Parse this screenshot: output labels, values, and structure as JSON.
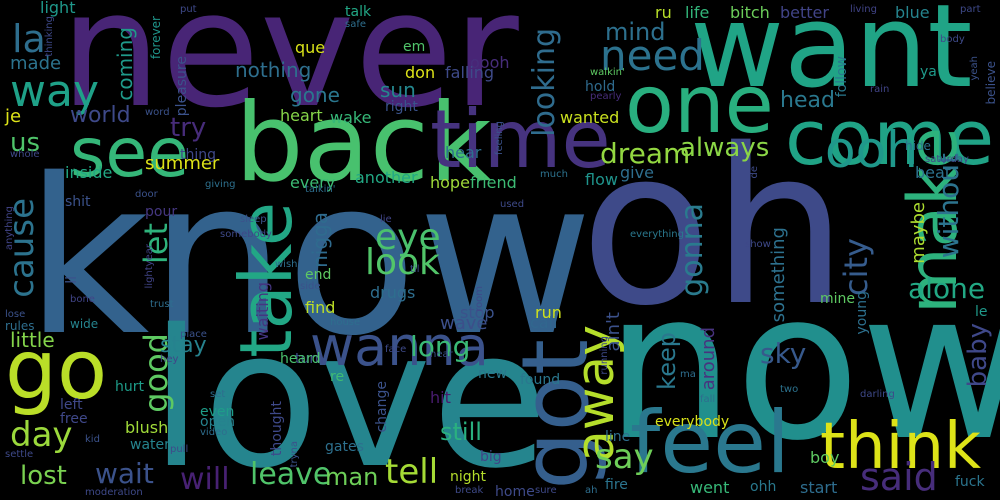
{
  "wordcloud": {
    "background": "#000000",
    "words": [
      {
        "text": "never",
        "color": "#482576"
      },
      {
        "text": "know",
        "color": "#33628d"
      },
      {
        "text": "oh",
        "color": "#3e4a89"
      },
      {
        "text": "now",
        "color": "#218f8d"
      },
      {
        "text": "love",
        "color": "#25858e"
      },
      {
        "text": "want",
        "color": "#20a486"
      },
      {
        "text": "back",
        "color": "#48c16e"
      },
      {
        "text": "time",
        "color": "#46337f"
      },
      {
        "text": "one",
        "color": "#29af7f"
      },
      {
        "text": "come",
        "color": "#20a386"
      },
      {
        "text": "feel",
        "color": "#2a788e"
      },
      {
        "text": "think",
        "color": "#dde318"
      },
      {
        "text": "got",
        "color": "#355f8d"
      },
      {
        "text": "go",
        "color": "#bade28"
      },
      {
        "text": "see",
        "color": "#35b779"
      },
      {
        "text": "take",
        "color": "#22a785"
      },
      {
        "text": "make",
        "color": "#2db27d"
      },
      {
        "text": "wanna",
        "color": "#3b528b"
      },
      {
        "text": "away",
        "color": "#b5de2b"
      },
      {
        "text": "need",
        "color": "#2c728e"
      },
      {
        "text": "ooh",
        "color": "#1f988b"
      },
      {
        "text": "say",
        "color": "#6ece58"
      },
      {
        "text": "said",
        "color": "#472d7b"
      },
      {
        "text": "tell",
        "color": "#a5db36"
      },
      {
        "text": "way",
        "color": "#1fa188"
      },
      {
        "text": "la",
        "color": "#2e6e8e"
      },
      {
        "text": "cause",
        "color": "#2c738e"
      },
      {
        "text": "day",
        "color": "#9bd93c"
      },
      {
        "text": "look",
        "color": "#52c569"
      },
      {
        "text": "eye",
        "color": "#4ac16d"
      },
      {
        "text": "let",
        "color": "#2eb37c"
      },
      {
        "text": "good",
        "color": "#5ec962"
      },
      {
        "text": "long",
        "color": "#3aba76"
      },
      {
        "text": "city",
        "color": "#365c8d"
      },
      {
        "text": "alone",
        "color": "#22a884"
      },
      {
        "text": "gonna",
        "color": "#2a7b8e"
      },
      {
        "text": "looking",
        "color": "#2f6c8e"
      },
      {
        "text": "dream",
        "color": "#93d741"
      },
      {
        "text": "always",
        "color": "#8bd646"
      },
      {
        "text": "without",
        "color": "#2c738e"
      },
      {
        "text": "try",
        "color": "#472c7a"
      },
      {
        "text": "wait",
        "color": "#3b528b"
      },
      {
        "text": "will",
        "color": "#482173"
      },
      {
        "text": "leave",
        "color": "#50c46a"
      },
      {
        "text": "lost",
        "color": "#7ad151"
      },
      {
        "text": "us",
        "color": "#4fc46a"
      },
      {
        "text": "keep",
        "color": "#2a788e"
      },
      {
        "text": "sky",
        "color": "#37598c"
      },
      {
        "text": "baby",
        "color": "#3f4889"
      },
      {
        "text": "man",
        "color": "#6ece58"
      },
      {
        "text": "still",
        "color": "#2ab07f"
      },
      {
        "text": "stay",
        "color": "#26828e"
      },
      {
        "text": "mind",
        "color": "#2d708e"
      },
      {
        "text": "head",
        "color": "#2a788e"
      },
      {
        "text": "world",
        "color": "#3e4989"
      },
      {
        "text": "coming",
        "color": "#1f9a8a"
      },
      {
        "text": "nigga",
        "color": "#2f6b8e"
      },
      {
        "text": "nothing",
        "color": "#2e6f8e"
      },
      {
        "text": "gone",
        "color": "#2a778e"
      },
      {
        "text": "sun",
        "color": "#24878e"
      },
      {
        "text": "little",
        "color": "#84d44b"
      },
      {
        "text": "wave",
        "color": "#3c4f8a"
      },
      {
        "text": "maybe",
        "color": "#addc30"
      },
      {
        "text": "something",
        "color": "#2d718e"
      },
      {
        "text": "ain't",
        "color": "#3b518b"
      },
      {
        "text": "around",
        "color": "#48337f"
      },
      {
        "text": "summer",
        "color": "#dde318"
      },
      {
        "text": "inside",
        "color": "#22a884"
      },
      {
        "text": "every",
        "color": "#3dbc74"
      },
      {
        "text": "another",
        "color": "#22a884"
      },
      {
        "text": "hope",
        "color": "#9fda3a"
      },
      {
        "text": "friend",
        "color": "#3dbc74"
      },
      {
        "text": "flow",
        "color": "#1f948c"
      },
      {
        "text": "give",
        "color": "#2e6e8e"
      },
      {
        "text": "beat",
        "color": "#2c728e"
      },
      {
        "text": "wanted",
        "color": "#cae11f"
      },
      {
        "text": "hear",
        "color": "#2e6f8e"
      },
      {
        "text": "waiting",
        "color": "#453581"
      },
      {
        "text": "drugs",
        "color": "#2e6e8e"
      },
      {
        "text": "find",
        "color": "#bddf26"
      },
      {
        "text": "run",
        "color": "#d0e11c"
      },
      {
        "text": "stop",
        "color": "#3b528b"
      },
      {
        "text": "call",
        "color": "#31678e"
      },
      {
        "text": "end",
        "color": "#5ec962"
      },
      {
        "text": "turn",
        "color": "#3e4c8a"
      },
      {
        "text": "re",
        "color": "#3fbc73"
      },
      {
        "text": "heard",
        "color": "#4ac16d"
      },
      {
        "text": "found",
        "color": "#2a778e"
      },
      {
        "text": "new",
        "color": "#2a788e"
      },
      {
        "text": "hurt",
        "color": "#1e9c89"
      },
      {
        "text": "pour",
        "color": "#453781"
      },
      {
        "text": "even",
        "color": "#1e9d89"
      },
      {
        "text": "open",
        "color": "#26828e"
      },
      {
        "text": "left",
        "color": "#3f4889"
      },
      {
        "text": "free",
        "color": "#3f4889"
      },
      {
        "text": "blush",
        "color": "#a0da39"
      },
      {
        "text": "water",
        "color": "#25848e"
      },
      {
        "text": "thought",
        "color": "#3e4989"
      },
      {
        "text": "gates",
        "color": "#2d708e"
      },
      {
        "text": "change",
        "color": "#3b528b"
      },
      {
        "text": "hit",
        "color": "#481c6e"
      },
      {
        "text": "line",
        "color": "#2e6e8e"
      },
      {
        "text": "everybody",
        "color": "#d8e219"
      },
      {
        "text": "went",
        "color": "#37b878"
      },
      {
        "text": "ohh",
        "color": "#29798e"
      },
      {
        "text": "start",
        "color": "#2e6d8e"
      },
      {
        "text": "fire",
        "color": "#2b748e"
      },
      {
        "text": "home",
        "color": "#3e4a89"
      },
      {
        "text": "big",
        "color": "#414487"
      },
      {
        "text": "night",
        "color": "#b5de2b"
      },
      {
        "text": "boy",
        "color": "#5ec962"
      },
      {
        "text": "fuck",
        "color": "#2b758e"
      },
      {
        "text": "mine",
        "color": "#5ec962"
      },
      {
        "text": "young",
        "color": "#2d708e"
      },
      {
        "text": "le",
        "color": "#1f998a"
      },
      {
        "text": "light",
        "color": "#1f988b"
      },
      {
        "text": "made",
        "color": "#2c738e"
      },
      {
        "text": "je",
        "color": "#dde318"
      },
      {
        "text": "que",
        "color": "#d8e219"
      },
      {
        "text": "don",
        "color": "#dde318"
      },
      {
        "text": "em",
        "color": "#50c46a"
      },
      {
        "text": "oooh",
        "color": "#472d7b"
      },
      {
        "text": "falling",
        "color": "#3e4a89"
      },
      {
        "text": "hold",
        "color": "#2f6b8e"
      },
      {
        "text": "right",
        "color": "#3a538b"
      },
      {
        "text": "wake",
        "color": "#36b878"
      },
      {
        "text": "heart",
        "color": "#86d549"
      },
      {
        "text": "talk",
        "color": "#22a785"
      },
      {
        "text": "safe",
        "color": "#2e6f8e"
      },
      {
        "text": "put",
        "color": "#3e4989"
      },
      {
        "text": "ru",
        "color": "#b8de29"
      },
      {
        "text": "life",
        "color": "#32b67a"
      },
      {
        "text": "bitch",
        "color": "#6ccd5a"
      },
      {
        "text": "better",
        "color": "#414487"
      },
      {
        "text": "living",
        "color": "#414487"
      },
      {
        "text": "blue",
        "color": "#25848e"
      },
      {
        "text": "part",
        "color": "#3e4989"
      },
      {
        "text": "follow",
        "color": "#29798e"
      },
      {
        "text": "thinking",
        "color": "#3e4989"
      },
      {
        "text": "forever",
        "color": "#1f958b"
      },
      {
        "text": "pleasure",
        "color": "#3b528b"
      },
      {
        "text": "word",
        "color": "#3b528b"
      },
      {
        "text": "thing",
        "color": "#3f4889"
      },
      {
        "text": "ya",
        "color": "#1f9a8a"
      },
      {
        "text": "yeah",
        "color": "#3b528b"
      },
      {
        "text": "believe",
        "color": "#3b528b"
      },
      {
        "text": "body",
        "color": "#3e4a89"
      },
      {
        "text": "rain",
        "color": "#414487"
      },
      {
        "text": "walkin'",
        "color": "#5ec962"
      },
      {
        "text": "pearly",
        "color": "#472d7b"
      },
      {
        "text": "feeling",
        "color": "#3b528b"
      },
      {
        "text": "hide",
        "color": "#2c728e"
      },
      {
        "text": "saturday",
        "color": "#3e4a89"
      },
      {
        "text": "whole",
        "color": "#3e4989"
      },
      {
        "text": "door",
        "color": "#3b528b"
      },
      {
        "text": "giving",
        "color": "#2d708e"
      },
      {
        "text": "talkin'",
        "color": "#2e6e8e"
      },
      {
        "text": "much",
        "color": "#2c728e"
      },
      {
        "text": "used",
        "color": "#3e4a89"
      },
      {
        "text": "de",
        "color": "#3e4a89"
      },
      {
        "text": "shit",
        "color": "#3b528b"
      },
      {
        "text": "sleep",
        "color": "#3b528b"
      },
      {
        "text": "lie",
        "color": "#414487"
      },
      {
        "text": "somebody",
        "color": "#3e4989"
      },
      {
        "text": "wish",
        "color": "#2e6e8e"
      },
      {
        "text": "side",
        "color": "#3b528b"
      },
      {
        "text": "til",
        "color": "#3e4a89"
      },
      {
        "text": "show",
        "color": "#3e4989"
      },
      {
        "text": "everything",
        "color": "#2a788e"
      },
      {
        "text": "anything",
        "color": "#414487"
      },
      {
        "text": "ll",
        "color": "#3b528b"
      },
      {
        "text": "lightyear",
        "color": "#414487"
      },
      {
        "text": "lose",
        "color": "#3b528b"
      },
      {
        "text": "rules",
        "color": "#2e6e8e"
      },
      {
        "text": "trust",
        "color": "#2e6e8e"
      },
      {
        "text": "bone",
        "color": "#414487"
      },
      {
        "text": "room",
        "color": "#3e4a89"
      },
      {
        "text": "wide",
        "color": "#25848e"
      },
      {
        "text": "house",
        "color": "#2e6e8e"
      },
      {
        "text": "face",
        "color": "#3e4a89"
      },
      {
        "text": "near",
        "color": "#3b528b"
      },
      {
        "text": "running",
        "color": "#3e4989"
      },
      {
        "text": "place",
        "color": "#3b528b"
      },
      {
        "text": "hey",
        "color": "#414487"
      },
      {
        "text": "ma",
        "color": "#2e6e8e"
      },
      {
        "text": "two",
        "color": "#2c728e"
      },
      {
        "text": "darling",
        "color": "#3e4989"
      },
      {
        "text": "fall",
        "color": "#2e6e8e"
      },
      {
        "text": "set",
        "color": "#2e6e8e"
      },
      {
        "text": "video",
        "color": "#2e6e8e"
      },
      {
        "text": "kid",
        "color": "#3b528b"
      },
      {
        "text": "pull",
        "color": "#3e4a89"
      },
      {
        "text": "tryna",
        "color": "#3b528b"
      },
      {
        "text": "settle",
        "color": "#3e4989"
      },
      {
        "text": "moderation",
        "color": "#3e4989"
      },
      {
        "text": "break",
        "color": "#3e4a89"
      },
      {
        "text": "sure",
        "color": "#3e4989"
      },
      {
        "text": "ah",
        "color": "#2e6e8e"
      }
    ]
  }
}
